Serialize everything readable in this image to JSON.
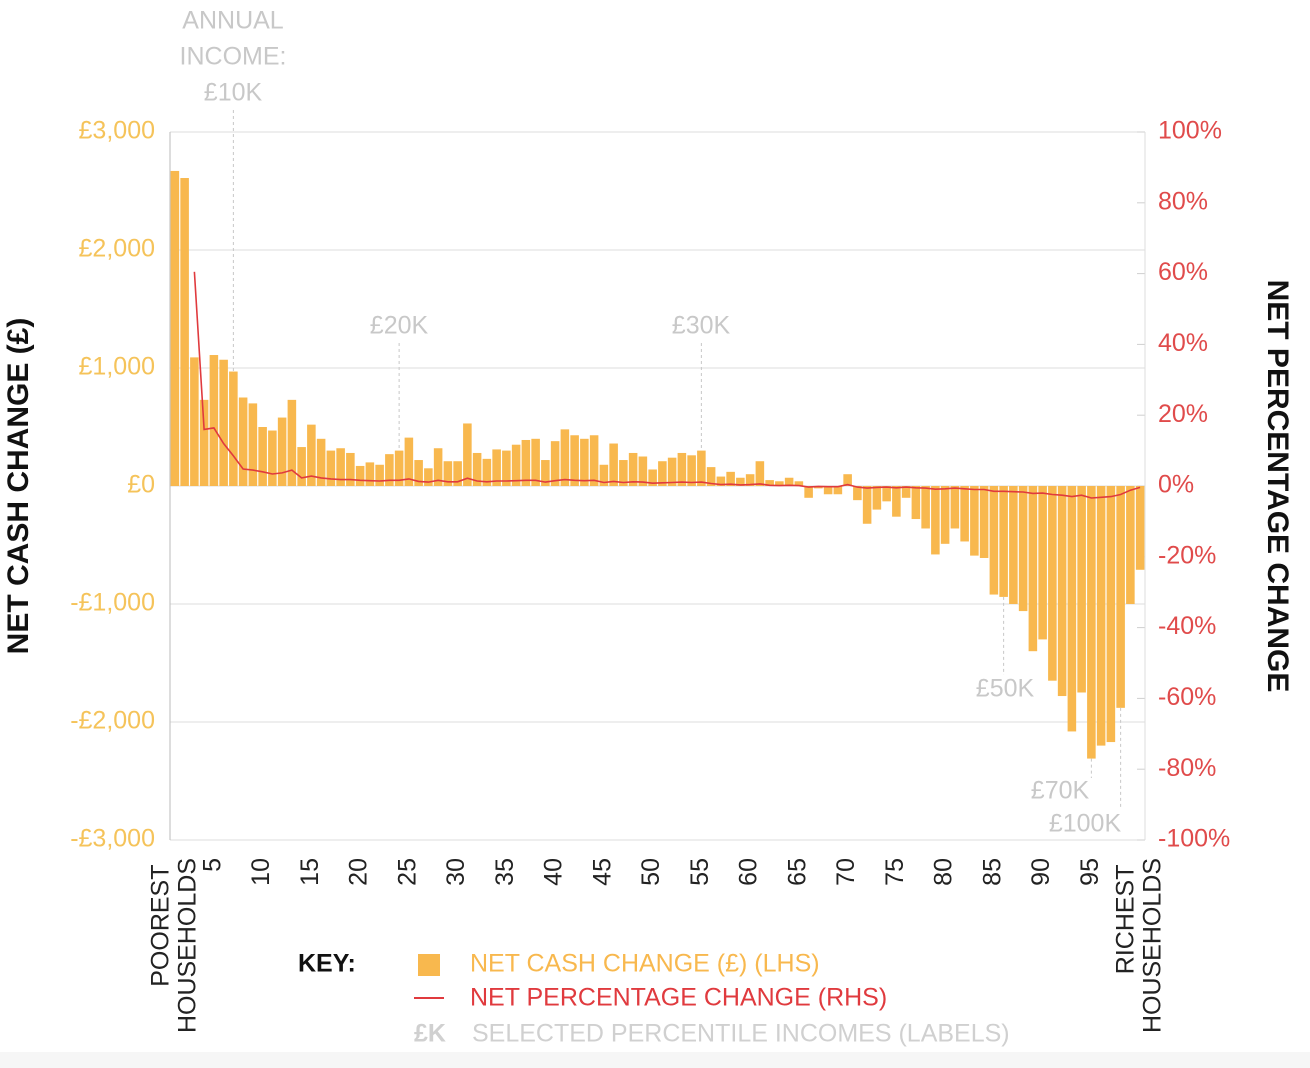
{
  "chart_data": {
    "type": "bar",
    "y_label": "NET CASH CHANGE (£)",
    "y2_label": "NET PERCENTAGE CHANGE",
    "categories": [
      "POOREST HOUSEHOLDS",
      null,
      null,
      null,
      "5",
      null,
      null,
      null,
      null,
      "10",
      null,
      null,
      null,
      null,
      "15",
      null,
      null,
      null,
      null,
      "20",
      null,
      null,
      null,
      null,
      "25",
      null,
      null,
      null,
      null,
      "30",
      null,
      null,
      null,
      null,
      "35",
      null,
      null,
      null,
      null,
      "40",
      null,
      null,
      null,
      null,
      "45",
      null,
      null,
      null,
      null,
      "50",
      null,
      null,
      null,
      null,
      "55",
      null,
      null,
      null,
      null,
      "60",
      null,
      null,
      null,
      null,
      "65",
      null,
      null,
      null,
      null,
      "70",
      null,
      null,
      null,
      null,
      "75",
      null,
      null,
      null,
      null,
      "80",
      null,
      null,
      null,
      null,
      "85",
      null,
      null,
      null,
      null,
      "90",
      null,
      null,
      null,
      null,
      "95",
      null,
      null,
      null,
      null,
      "RICHEST HOUSEHOLDS"
    ],
    "series": [
      {
        "name": "NET CASH CHANGE (£) (LHS)",
        "type": "bar",
        "color": "#f8b84e",
        "values": [
          2670,
          2610,
          1090,
          730,
          1110,
          1070,
          970,
          750,
          700,
          500,
          470,
          580,
          730,
          330,
          520,
          400,
          300,
          320,
          280,
          170,
          200,
          180,
          270,
          300,
          410,
          220,
          150,
          320,
          210,
          210,
          530,
          280,
          230,
          310,
          300,
          350,
          390,
          400,
          220,
          380,
          480,
          430,
          400,
          430,
          180,
          360,
          220,
          280,
          250,
          140,
          210,
          240,
          280,
          260,
          300,
          160,
          80,
          120,
          70,
          100,
          210,
          50,
          40,
          70,
          40,
          -100,
          -20,
          -70,
          -70,
          100,
          -120,
          -320,
          -200,
          -130,
          -260,
          -100,
          -280,
          -360,
          -580,
          -490,
          -360,
          -470,
          -590,
          -610,
          -920,
          -940,
          -1000,
          -1060,
          -1400,
          -1300,
          -1650,
          -1780,
          -2080,
          -1750,
          -2310,
          -2200,
          -2170,
          -1880,
          -1000,
          -710
        ]
      },
      {
        "name": "NET PERCENTAGE CHANGE (RHS)",
        "type": "line",
        "axis": "y2",
        "color": "#e03a3e",
        "values": [
          null,
          null,
          60.5,
          16,
          16.4,
          12,
          8.5,
          4.8,
          4.5,
          4,
          3.4,
          3.7,
          4.5,
          2.3,
          2.8,
          2.3,
          2,
          1.8,
          1.8,
          1.6,
          1.5,
          1.4,
          1.6,
          1.6,
          2,
          1.3,
          1.1,
          1.6,
          1.2,
          1.2,
          2.2,
          1.4,
          1.2,
          1.4,
          1.4,
          1.5,
          1.6,
          1.6,
          1.1,
          1.5,
          1.8,
          1.6,
          1.5,
          1.6,
          1,
          1.3,
          1,
          1.2,
          1.1,
          0.8,
          0.9,
          1,
          1.1,
          1,
          1.1,
          0.7,
          0.4,
          0.5,
          0.3,
          0.4,
          0.6,
          0.2,
          0.1,
          0.2,
          0.1,
          -0.3,
          -0.1,
          -0.2,
          -0.2,
          0.4,
          -0.3,
          -0.6,
          -0.4,
          -0.3,
          -0.5,
          -0.3,
          -0.5,
          -0.6,
          -0.9,
          -0.8,
          -0.6,
          -0.8,
          -1,
          -1,
          -1.5,
          -1.5,
          -1.6,
          -1.7,
          -2.1,
          -2,
          -2.4,
          -2.6,
          -3,
          -2.6,
          -3.4,
          -3.2,
          -3,
          -2.4,
          -1.2,
          -0.4
        ]
      }
    ],
    "ylim": [
      -3000,
      3000
    ],
    "yticks": [
      {
        "value": -3000,
        "label": "-£3,000"
      },
      {
        "value": -2000,
        "label": "-£2,000"
      },
      {
        "value": -1000,
        "label": "-£1,000"
      },
      {
        "value": 0,
        "label": "£0"
      },
      {
        "value": 1000,
        "label": "£1,000"
      },
      {
        "value": 2000,
        "label": "£2,000"
      },
      {
        "value": 3000,
        "label": "£3,000"
      }
    ],
    "y2lim": [
      -100,
      100
    ],
    "y2ticks": [
      {
        "value": -100,
        "label": "-100%"
      },
      {
        "value": -80,
        "label": "-80%"
      },
      {
        "value": -60,
        "label": "-60%"
      },
      {
        "value": -40,
        "label": "-40%"
      },
      {
        "value": -20,
        "label": "-20%"
      },
      {
        "value": 0,
        "label": "0%"
      },
      {
        "value": 20,
        "label": "20%"
      },
      {
        "value": 40,
        "label": "40%"
      },
      {
        "value": 60,
        "label": "60%"
      },
      {
        "value": 80,
        "label": "80%"
      },
      {
        "value": 100,
        "label": "100%"
      }
    ],
    "grid": true,
    "annotations": [
      {
        "lines": [
          "ANNUAL",
          "INCOME:",
          "£10K"
        ],
        "percentile": 7
      },
      {
        "lines": [
          "£20K"
        ],
        "percentile": 24
      },
      {
        "lines": [
          "£30K"
        ],
        "percentile": 55
      },
      {
        "lines": [
          "£50K"
        ],
        "percentile": 86
      },
      {
        "lines": [
          "£70K"
        ],
        "percentile": 95
      },
      {
        "lines": [
          "£100K"
        ],
        "percentile": 98
      }
    ],
    "key": {
      "title": "KEY:",
      "marker": "£K",
      "label": "SELECTED PERCENTILE INCOMES (LABELS)"
    }
  }
}
